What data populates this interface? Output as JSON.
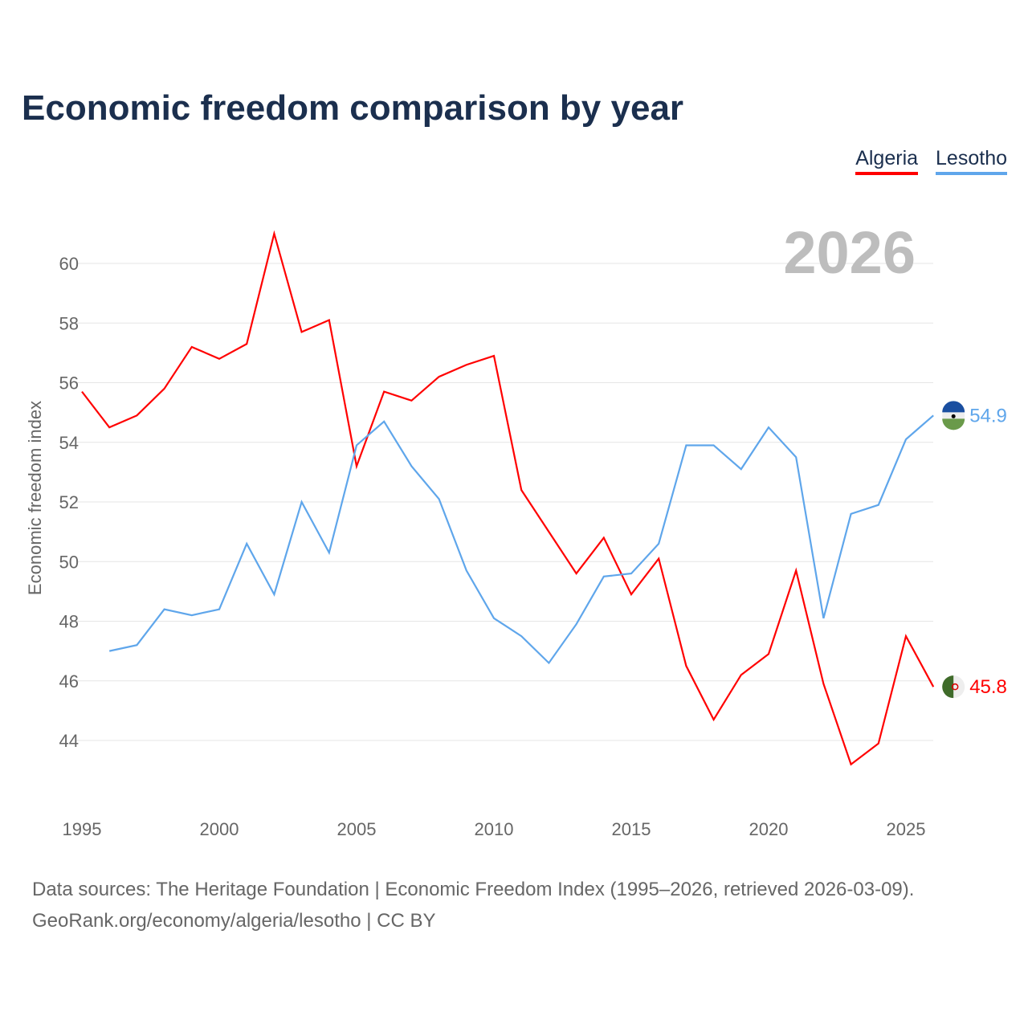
{
  "title": "Economic freedom comparison by year",
  "legend": [
    "Algeria",
    "Lesotho"
  ],
  "footer": {
    "line1": "Data sources: The Heritage Foundation | Economic Freedom Index (1995–2026, retrieved 2026-03-09).",
    "line2": "GeoRank.org/economy/algeria/lesotho | CC BY"
  },
  "chart_data": {
    "type": "line",
    "title": "Economic freedom comparison by year",
    "xlabel": "",
    "ylabel": "Economic freedom index",
    "year_label": "2026",
    "xlim": [
      1995,
      2026
    ],
    "ylim": [
      42,
      62
    ],
    "xticks": [
      1995,
      2000,
      2005,
      2010,
      2015,
      2020,
      2025
    ],
    "yticks": [
      44,
      46,
      48,
      50,
      52,
      54,
      56,
      58,
      60
    ],
    "grid": true,
    "legend_position": "top-right",
    "series": [
      {
        "name": "Algeria",
        "color": "#ff0000",
        "end_label": "45.8",
        "x": [
          1995,
          1996,
          1997,
          1998,
          1999,
          2000,
          2001,
          2002,
          2003,
          2004,
          2005,
          2006,
          2007,
          2008,
          2009,
          2010,
          2011,
          2012,
          2013,
          2014,
          2015,
          2016,
          2017,
          2018,
          2019,
          2020,
          2021,
          2022,
          2023,
          2024,
          2025,
          2026
        ],
        "values": [
          55.7,
          54.5,
          54.9,
          55.8,
          57.2,
          56.8,
          57.3,
          61.0,
          57.7,
          58.1,
          53.2,
          55.7,
          55.4,
          56.2,
          56.6,
          56.9,
          52.4,
          51.0,
          49.6,
          50.8,
          48.9,
          50.1,
          46.5,
          44.7,
          46.2,
          46.9,
          49.7,
          45.9,
          43.2,
          43.9,
          47.5,
          45.8
        ]
      },
      {
        "name": "Lesotho",
        "color": "#5fa6eb",
        "end_label": "54.9",
        "x": [
          1996,
          1997,
          1998,
          1999,
          2000,
          2001,
          2002,
          2003,
          2004,
          2005,
          2006,
          2007,
          2008,
          2009,
          2010,
          2011,
          2012,
          2013,
          2014,
          2015,
          2016,
          2017,
          2018,
          2019,
          2020,
          2021,
          2022,
          2023,
          2024,
          2025,
          2026
        ],
        "values": [
          47.0,
          47.2,
          48.4,
          48.2,
          48.4,
          50.6,
          48.9,
          52.0,
          50.3,
          53.9,
          54.7,
          53.2,
          52.1,
          49.7,
          48.1,
          47.5,
          46.6,
          47.9,
          49.5,
          49.6,
          50.6,
          53.9,
          53.9,
          53.1,
          54.5,
          53.5,
          48.1,
          51.6,
          51.9,
          54.1,
          54.9
        ]
      }
    ]
  }
}
